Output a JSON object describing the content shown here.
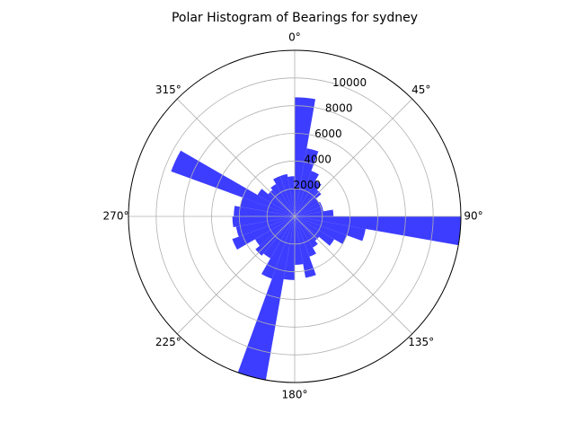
{
  "chart_data": {
    "type": "polar-bar",
    "title": "Polar Histogram of Bearings for sydney",
    "theta_direction": "clockwise",
    "theta_zero": "north",
    "angle_ticks": [
      "0°",
      "45°",
      "90°",
      "135°",
      "180°",
      "225°",
      "270°",
      "315°"
    ],
    "angle_tick_values": [
      0,
      45,
      90,
      135,
      180,
      225,
      270,
      315
    ],
    "radial_ticks": [
      "2000",
      "4000",
      "6000",
      "8000",
      "10000"
    ],
    "radial_tick_values": [
      2000,
      4000,
      6000,
      8000,
      10000
    ],
    "rmax": 12000,
    "grid": true,
    "bar_color": "#3333ff",
    "bin_width_deg": 10,
    "series": [
      {
        "bin_start_deg": [
          0,
          10,
          20,
          30,
          40,
          50,
          60,
          70,
          80,
          90,
          100,
          110,
          120,
          130,
          140,
          150,
          160,
          170,
          180,
          190,
          200,
          210,
          220,
          230,
          240,
          250,
          260,
          270,
          280,
          290,
          300,
          310,
          320,
          330,
          340,
          350
        ],
        "values": [
          8600,
          5000,
          3500,
          3000,
          2500,
          2000,
          2100,
          2100,
          2800,
          12300,
          5200,
          4000,
          3300,
          2300,
          2600,
          3100,
          4500,
          3500,
          4600,
          12000,
          4800,
          3500,
          3700,
          3300,
          4800,
          4300,
          4500,
          4400,
          4000,
          9500,
          3100,
          2500,
          2700,
          3100,
          3100,
          2900
        ]
      }
    ]
  }
}
